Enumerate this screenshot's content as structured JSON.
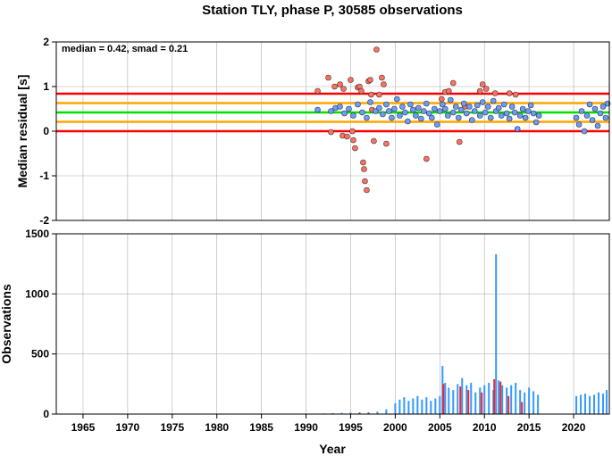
{
  "chart_data": [
    {
      "type": "scatter",
      "title": "Station TLY, phase P, 30585 observations",
      "xlabel": "",
      "ylabel": "Median residual [s]",
      "annotation": "median = 0.42, smad = 0.21",
      "xlim": [
        1962,
        2024
      ],
      "ylim": [
        -2,
        2
      ],
      "yticks": [
        -2,
        -1,
        0,
        1,
        2
      ],
      "grid": true,
      "reference_lines": [
        {
          "value": 0.42,
          "color": "#00e000"
        },
        {
          "value": 0.63,
          "color": "#ffa500"
        },
        {
          "value": 0.21,
          "color": "#ffa500"
        },
        {
          "value": 0.84,
          "color": "#ff0000"
        },
        {
          "value": 0.0,
          "color": "#ff0000"
        }
      ],
      "series": [
        {
          "color": "#ff7060",
          "points": [
            [
              1991.3,
              0.9
            ],
            [
              1992.5,
              1.2
            ],
            [
              1992.8,
              -0.02
            ],
            [
              1993.2,
              1.0
            ],
            [
              1993.8,
              1.05
            ],
            [
              1994.2,
              0.95
            ],
            [
              1994.1,
              -0.1
            ],
            [
              1994.6,
              -0.12
            ],
            [
              1995.0,
              1.15
            ],
            [
              1995.2,
              0.0
            ],
            [
              1995.3,
              -0.2
            ],
            [
              1995.5,
              -0.38
            ],
            [
              1995.8,
              0.98
            ],
            [
              1996.0,
              1.0
            ],
            [
              1996.2,
              0.9
            ],
            [
              1996.4,
              -0.7
            ],
            [
              1996.5,
              -0.85
            ],
            [
              1996.6,
              -1.12
            ],
            [
              1996.8,
              -1.32
            ],
            [
              1997.0,
              1.12
            ],
            [
              1997.2,
              1.15
            ],
            [
              1997.4,
              0.48
            ],
            [
              1997.6,
              -0.22
            ],
            [
              1997.9,
              1.83
            ],
            [
              1998.2,
              0.82
            ],
            [
              1998.5,
              1.2
            ],
            [
              1998.7,
              1.05
            ],
            [
              1999.0,
              -0.28
            ],
            [
              2003.5,
              -0.62
            ],
            [
              2005.2,
              0.72
            ],
            [
              2005.6,
              0.88
            ],
            [
              2006.0,
              0.9
            ],
            [
              2006.5,
              1.08
            ],
            [
              2007.2,
              -0.24
            ],
            [
              2007.8,
              0.55
            ],
            [
              2009.5,
              0.9
            ],
            [
              2009.8,
              1.05
            ],
            [
              2010.2,
              0.95
            ],
            [
              2011.2,
              0.85
            ],
            [
              2012.8,
              0.85
            ],
            [
              2013.5,
              0.82
            ],
            [
              1997.3,
              0.82
            ]
          ]
        },
        {
          "color": "#6a9cff",
          "points": [
            [
              1991.3,
              0.48
            ],
            [
              1992.8,
              0.45
            ],
            [
              1993.3,
              0.52
            ],
            [
              1993.8,
              0.55
            ],
            [
              1994.3,
              0.4
            ],
            [
              1994.8,
              0.5
            ],
            [
              1995.3,
              0.35
            ],
            [
              1995.8,
              0.6
            ],
            [
              1996.3,
              0.42
            ],
            [
              1996.8,
              0.3
            ],
            [
              1997.2,
              0.65
            ],
            [
              1997.8,
              0.45
            ],
            [
              1998.2,
              0.52
            ],
            [
              1998.6,
              0.38
            ],
            [
              1999.0,
              0.6
            ],
            [
              1999.3,
              0.45
            ],
            [
              1999.6,
              0.3
            ],
            [
              1999.9,
              0.5
            ],
            [
              2000.2,
              0.72
            ],
            [
              2000.5,
              0.35
            ],
            [
              2000.8,
              0.55
            ],
            [
              2001.1,
              0.42
            ],
            [
              2001.4,
              0.22
            ],
            [
              2001.7,
              0.6
            ],
            [
              2002.0,
              0.48
            ],
            [
              2002.3,
              0.35
            ],
            [
              2002.6,
              0.52
            ],
            [
              2002.9,
              0.28
            ],
            [
              2003.2,
              0.45
            ],
            [
              2003.5,
              0.62
            ],
            [
              2003.8,
              0.4
            ],
            [
              2004.1,
              0.3
            ],
            [
              2004.4,
              0.5
            ],
            [
              2004.7,
              0.15
            ],
            [
              2005.0,
              0.45
            ],
            [
              2005.3,
              0.6
            ],
            [
              2005.6,
              0.5
            ],
            [
              2005.9,
              0.35
            ],
            [
              2006.2,
              0.7
            ],
            [
              2006.5,
              0.42
            ],
            [
              2006.8,
              0.55
            ],
            [
              2007.1,
              0.3
            ],
            [
              2007.4,
              0.48
            ],
            [
              2007.7,
              0.62
            ],
            [
              2008.0,
              0.4
            ],
            [
              2008.3,
              0.55
            ],
            [
              2008.6,
              0.25
            ],
            [
              2008.9,
              0.45
            ],
            [
              2009.2,
              0.58
            ],
            [
              2009.5,
              0.35
            ],
            [
              2009.8,
              0.65
            ],
            [
              2010.1,
              0.42
            ],
            [
              2010.4,
              0.55
            ],
            [
              2010.7,
              0.3
            ],
            [
              2011.0,
              0.68
            ],
            [
              2011.3,
              0.45
            ],
            [
              2011.6,
              0.52
            ],
            [
              2011.9,
              0.35
            ],
            [
              2012.2,
              0.6
            ],
            [
              2012.5,
              0.4
            ],
            [
              2012.8,
              0.28
            ],
            [
              2013.1,
              0.55
            ],
            [
              2013.4,
              0.42
            ],
            [
              2013.7,
              0.05
            ],
            [
              2014.0,
              0.35
            ],
            [
              2014.3,
              0.5
            ],
            [
              2014.6,
              0.3
            ],
            [
              2014.9,
              0.45
            ],
            [
              2015.2,
              0.58
            ],
            [
              2015.5,
              0.4
            ],
            [
              2015.8,
              0.2
            ],
            [
              2016.1,
              0.35
            ],
            [
              2020.3,
              0.3
            ],
            [
              2020.6,
              0.15
            ],
            [
              2020.9,
              0.45
            ],
            [
              2021.2,
              0.0
            ],
            [
              2021.5,
              0.35
            ],
            [
              2021.8,
              0.6
            ],
            [
              2022.1,
              0.25
            ],
            [
              2022.4,
              0.5
            ],
            [
              2022.7,
              0.12
            ],
            [
              2023.0,
              0.4
            ],
            [
              2023.3,
              0.55
            ],
            [
              2023.6,
              0.3
            ],
            [
              2023.8,
              0.62
            ]
          ]
        }
      ]
    },
    {
      "type": "bar",
      "xlabel": "Year",
      "ylabel": "Observations",
      "xlim": [
        1962,
        2024
      ],
      "ylim": [
        0,
        1500
      ],
      "yticks": [
        0,
        500,
        1000,
        1500
      ],
      "xticks": [
        "1965",
        "1970",
        "1975",
        "1980",
        "1985",
        "1990",
        "1995",
        "2000",
        "2005",
        "2010",
        "2015",
        "2020"
      ],
      "grid": true,
      "series": [
        {
          "color": "#3399ff",
          "x": [
            1991,
            1992,
            1993,
            1994,
            1995,
            1996,
            1997,
            1998,
            1999,
            2000,
            2000.5,
            2001,
            2001.5,
            2002,
            2002.5,
            2003,
            2003.5,
            2004,
            2004.5,
            2005,
            2005.3,
            2005.6,
            2006,
            2006.5,
            2007,
            2007.5,
            2008,
            2008.5,
            2009,
            2009.5,
            2010,
            2010.5,
            2011,
            2011.3,
            2011.6,
            2012,
            2012.5,
            2013,
            2013.5,
            2014,
            2014.5,
            2015,
            2015.5,
            2016,
            2020.3,
            2020.8,
            2021.3,
            2021.8,
            2022.3,
            2022.8,
            2023.3,
            2023.7
          ],
          "values": [
            3,
            5,
            8,
            10,
            12,
            14,
            16,
            20,
            40,
            90,
            120,
            140,
            110,
            130,
            150,
            120,
            140,
            110,
            130,
            150,
            400,
            260,
            220,
            200,
            250,
            300,
            240,
            260,
            180,
            220,
            240,
            260,
            200,
            1330,
            280,
            240,
            220,
            240,
            260,
            200,
            180,
            220,
            190,
            160,
            150,
            160,
            170,
            150,
            160,
            180,
            170,
            200
          ]
        },
        {
          "color": "#ff2020",
          "x": [
            1995,
            1996,
            1997,
            2005.4,
            2007.3,
            2008.2,
            2009.7,
            2011.1,
            2011.8,
            2012.7,
            2014.2
          ],
          "values": [
            4,
            10,
            8,
            250,
            230,
            200,
            180,
            290,
            270,
            150,
            100
          ]
        }
      ]
    }
  ]
}
